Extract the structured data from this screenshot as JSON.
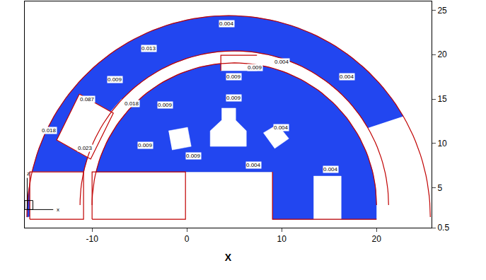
{
  "chart_data": {
    "type": "contour_mesh",
    "x_label": "X",
    "xlim": [
      -17.1,
      25.8
    ],
    "ylim": [
      0.5,
      26
    ],
    "xticks": [
      -10,
      0,
      10,
      20
    ],
    "yticks": [
      0.5,
      5,
      10,
      15,
      20,
      25
    ],
    "grid": false,
    "fluid_regions": [
      {
        "color": "#2246f0",
        "path": [
          {
            "arc": [
              4.4,
              1.7,
              21.27,
              22.7,
              30,
              180
            ]
          },
          {
            "arc": [
              5.0,
              3.05,
              16.27,
              17.37,
              180,
              30
            ]
          }
        ]
      },
      {
        "color": "#2246f0",
        "path": [
          {
            "arc": [
              5.0,
              3.05,
              15.0,
              16.02,
              0,
              166.5
            ]
          },
          {
            "line": [
              [
                9.03,
                6.79
              ],
              [
                9.03,
                1.45
              ],
              [
                20.0,
                1.45
              ]
            ]
          }
        ]
      }
    ],
    "solid_regions": [
      {
        "color": "#ffffff",
        "path": [
          {
            "line": [
              [
                -11.34,
                15.56
              ],
              [
                -7.76,
                13.41
              ],
              [
                -10.15,
                8.23
              ],
              [
                -13.73,
                10.38
              ]
            ]
          }
        ]
      },
      {
        "color": "#ffffff",
        "path": [
          {
            "line": [
              [
                -8.51,
                13.0
              ],
              [
                -6.87,
                15.0
              ],
              [
                -6.27,
                14.52
              ],
              [
                -7.91,
                12.53
              ]
            ]
          }
        ]
      },
      {
        "color": "#ffffff",
        "path": [
          {
            "line": [
              [
                3.58,
                19.94
              ],
              [
                7.39,
                19.94
              ],
              [
                7.39,
                18.19
              ],
              [
                3.58,
                18.19
              ]
            ]
          }
        ]
      },
      {
        "color": "#ffffff",
        "path": [
          {
            "line": [
              [
                3.66,
                13.97
              ],
              [
                5.15,
                13.97
              ],
              [
                5.15,
                12.61
              ],
              [
                6.27,
                11.41
              ],
              [
                6.27,
                9.66
              ],
              [
                2.46,
                9.66
              ],
              [
                2.46,
                11.41
              ],
              [
                3.66,
                12.61
              ]
            ]
          }
        ]
      },
      {
        "color": "#ffffff",
        "path": [
          {
            "line": [
              [
                -1.94,
                11.41
              ],
              [
                0.07,
                11.81
              ],
              [
                0.45,
                9.66
              ],
              [
                -1.57,
                9.26
              ]
            ]
          }
        ]
      },
      {
        "color": "#ffffff",
        "path": [
          {
            "line": [
              [
                8.06,
                11.18
              ],
              [
                9.55,
                12.13
              ],
              [
                10.75,
                10.54
              ],
              [
                9.25,
                9.42
              ]
            ]
          }
        ]
      },
      {
        "color": "#ffffff",
        "path": [
          {
            "line": [
              [
                -16.57,
                1.45
              ],
              [
                -10.9,
                1.45
              ],
              [
                -10.9,
                6.79
              ],
              [
                -16.57,
                6.79
              ]
            ]
          }
        ]
      },
      {
        "color": "#ffffff",
        "path": [
          {
            "line": [
              [
                13.36,
                1.45
              ],
              [
                16.27,
                1.45
              ],
              [
                16.27,
                6.31
              ],
              [
                13.36,
                6.31
              ]
            ]
          }
        ]
      }
    ],
    "outlines": [
      {
        "color": "#c00000",
        "path": [
          {
            "arc": [
              4.4,
              1.7,
              21.27,
              22.7,
              0,
              180
            ]
          }
        ]
      },
      {
        "color": "#c00000",
        "path": [
          {
            "arc": [
              5.0,
              3.05,
              16.27,
              17.37,
              0,
              180
            ]
          }
        ]
      },
      {
        "color": "#c00000",
        "path": [
          {
            "arc": [
              5.0,
              3.05,
              15.0,
              16.02,
              0,
              180
            ]
          }
        ]
      },
      {
        "color": "#c00000",
        "path": [
          {
            "line": [
              [
                -16.57,
                1.45
              ],
              [
                -16.57,
                6.79
              ],
              [
                -10.9,
                6.79
              ],
              [
                -10.9,
                1.45
              ],
              [
                -16.57,
                1.45
              ]
            ]
          }
        ]
      },
      {
        "color": "#c00000",
        "path": [
          {
            "line": [
              [
                -10.0,
                1.45
              ],
              [
                -10.0,
                6.79
              ],
              [
                -0.15,
                6.79
              ],
              [
                -0.15,
                1.45
              ],
              [
                -10.0,
                1.45
              ]
            ]
          }
        ]
      },
      {
        "color": "#c00000",
        "path": [
          {
            "line": [
              [
                9.03,
                6.79
              ],
              [
                9.03,
                1.45
              ],
              [
                20.0,
                1.45
              ]
            ]
          }
        ]
      },
      {
        "color": "#c00000",
        "path": [
          {
            "line": [
              [
                -11.34,
                15.56
              ],
              [
                -7.76,
                13.41
              ],
              [
                -10.15,
                8.23
              ],
              [
                -13.73,
                10.38
              ],
              [
                -11.34,
                15.56
              ]
            ]
          }
        ]
      },
      {
        "color": "#c00000",
        "path": [
          {
            "line": [
              [
                3.58,
                18.19
              ],
              [
                3.58,
                19.94
              ],
              [
                7.39,
                19.94
              ]
            ]
          }
        ]
      }
    ],
    "contour_labels": [
      {
        "value": 0.004,
        "x": 4.18,
        "y": 23.53
      },
      {
        "value": 0.004,
        "x": 10.0,
        "y": 19.15
      },
      {
        "value": 0.009,
        "x": 7.16,
        "y": 18.51
      },
      {
        "value": 0.013,
        "x": -4.03,
        "y": 20.74
      },
      {
        "value": 0.009,
        "x": -7.61,
        "y": 17.23
      },
      {
        "value": 0.004,
        "x": 16.87,
        "y": 17.55
      },
      {
        "value": 0.009,
        "x": 4.93,
        "y": 17.55
      },
      {
        "value": 0.087,
        "x": -10.52,
        "y": 15.0
      },
      {
        "value": 0.018,
        "x": -5.82,
        "y": 14.52
      },
      {
        "value": 0.009,
        "x": -2.31,
        "y": 14.29
      },
      {
        "value": 0.009,
        "x": 4.93,
        "y": 15.16
      },
      {
        "value": 0.004,
        "x": 9.93,
        "y": 11.81
      },
      {
        "value": 0.018,
        "x": -14.55,
        "y": 11.42
      },
      {
        "value": 0.009,
        "x": -4.4,
        "y": 9.82
      },
      {
        "value": 0.023,
        "x": -10.75,
        "y": 9.43
      },
      {
        "value": 0.009,
        "x": 0.67,
        "y": 8.55
      },
      {
        "value": 0.004,
        "x": 7.01,
        "y": 7.59
      },
      {
        "value": 0.004,
        "x": 15.15,
        "y": 7.11
      }
    ],
    "annotations": [
      {
        "text": "z",
        "x": -16.7,
        "y": 6.6
      },
      {
        "text": "x",
        "x": -13.6,
        "y": 2.5
      }
    ]
  }
}
